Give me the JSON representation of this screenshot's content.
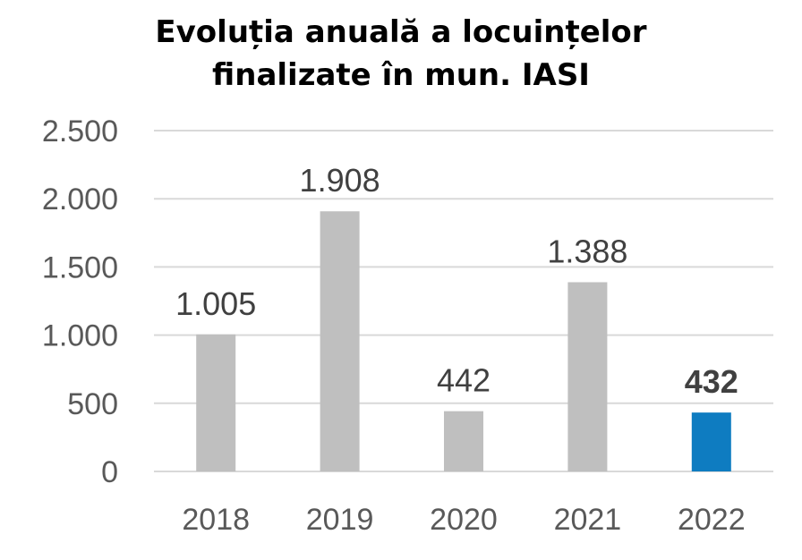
{
  "chart_data": {
    "type": "bar",
    "title_lines": [
      "Evoluția anuală a locuințelor",
      "finalizate în mun. IASI"
    ],
    "categories": [
      "2018",
      "2019",
      "2020",
      "2021",
      "2022"
    ],
    "values": [
      1005,
      1908,
      442,
      1388,
      432
    ],
    "data_labels": [
      "1.005",
      "1.908",
      "442",
      "1.388",
      "432"
    ],
    "y_ticks": [
      0,
      500,
      1000,
      1500,
      2000,
      2500
    ],
    "y_tick_labels": [
      "0",
      "500",
      "1.000",
      "1.500",
      "2.000",
      "2.500"
    ],
    "ylim": [
      0,
      2500
    ],
    "grid": true,
    "legend": "none",
    "bar_color": "#BFBFBF",
    "highlight_color": "#0E7CC1",
    "highlight_index": 4
  }
}
